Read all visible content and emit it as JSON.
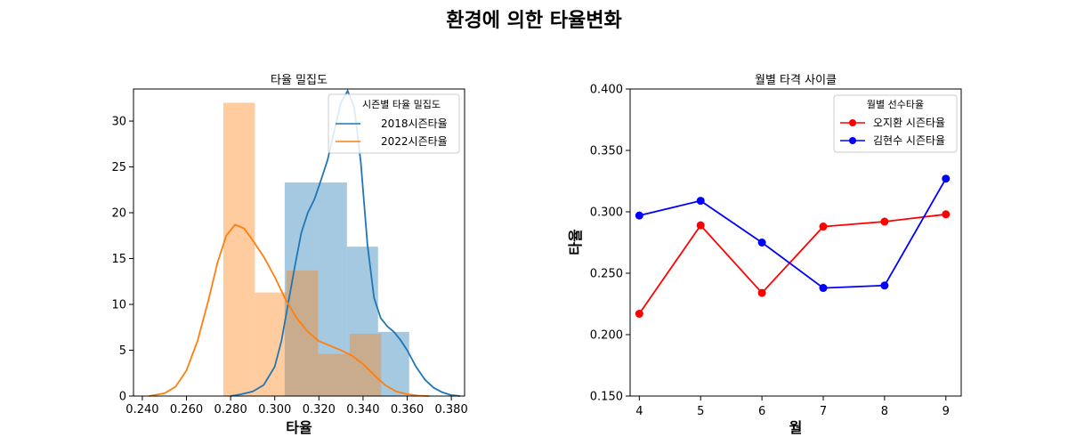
{
  "figure": {
    "suptitle": "환경에 의한 타율변화"
  },
  "chart_data": [
    {
      "type": "histogram",
      "title": "타율 밀집도",
      "xlabel": "타율",
      "ylabel": "",
      "xlim": [
        0.236,
        0.386
      ],
      "ylim": [
        0,
        33.5
      ],
      "xticks": [
        "0.240",
        "0.260",
        "0.280",
        "0.300",
        "0.320",
        "0.340",
        "0.360",
        "0.380"
      ],
      "yticks": [
        "0",
        "5",
        "10",
        "15",
        "20",
        "25",
        "30"
      ],
      "legend": {
        "title": "시즌별 타율 밀집도",
        "position": "top-right",
        "entries": [
          "2018시즌타율",
          "2022시즌타율"
        ]
      },
      "series": [
        {
          "name": "2018시즌타율",
          "color": "#1f77b4",
          "hist_alpha": 0.4,
          "bins": [
            {
              "x0": 0.3045,
              "x1": 0.3186,
              "density": 23.3
            },
            {
              "x0": 0.3186,
              "x1": 0.3327,
              "density": 23.3
            },
            {
              "x0": 0.3327,
              "x1": 0.3468,
              "density": 16.3
            },
            {
              "x0": 0.3468,
              "x1": 0.3609,
              "density": 7.0
            }
          ],
          "kde": {
            "x": [
              0.28,
              0.285,
              0.29,
              0.295,
              0.3,
              0.303,
              0.306,
              0.309,
              0.312,
              0.315,
              0.318,
              0.321,
              0.324,
              0.327,
              0.33,
              0.333,
              0.336,
              0.339,
              0.342,
              0.345,
              0.348,
              0.351,
              0.354,
              0.357,
              0.36,
              0.364,
              0.368,
              0.372,
              0.376,
              0.38,
              0.384
            ],
            "y": [
              0.0,
              0.2,
              0.5,
              1.2,
              3.2,
              6.0,
              10.0,
              14.0,
              17.8,
              20.0,
              21.5,
              23.6,
              25.8,
              29.0,
              32.0,
              33.3,
              31.5,
              25.5,
              16.5,
              10.7,
              8.5,
              7.6,
              7.0,
              6.1,
              5.0,
              3.2,
              1.8,
              0.9,
              0.4,
              0.1,
              0.0
            ]
          }
        },
        {
          "name": "2022시즌타율",
          "color": "#ff7f0e",
          "hist_alpha": 0.4,
          "bins": [
            {
              "x0": 0.2767,
              "x1": 0.291,
              "density": 32.0
            },
            {
              "x0": 0.291,
              "x1": 0.3053,
              "density": 11.3
            },
            {
              "x0": 0.3053,
              "x1": 0.3196,
              "density": 13.7
            },
            {
              "x0": 0.3196,
              "x1": 0.3339,
              "density": 4.6
            },
            {
              "x0": 0.3339,
              "x1": 0.3482,
              "density": 6.8
            }
          ],
          "kde": {
            "x": [
              0.243,
              0.25,
              0.255,
              0.26,
              0.265,
              0.27,
              0.274,
              0.278,
              0.282,
              0.286,
              0.29,
              0.295,
              0.3,
              0.305,
              0.31,
              0.315,
              0.32,
              0.325,
              0.33,
              0.335,
              0.34,
              0.345,
              0.35,
              0.355,
              0.36,
              0.365,
              0.37
            ],
            "y": [
              0.0,
              0.3,
              1.0,
              2.8,
              6.0,
              10.5,
              14.5,
              17.5,
              18.7,
              18.3,
              17.0,
              15.2,
              13.0,
              10.5,
              8.5,
              7.0,
              6.0,
              5.5,
              5.0,
              4.4,
              3.5,
              2.3,
              1.2,
              0.5,
              0.2,
              0.05,
              0.0
            ]
          }
        }
      ]
    },
    {
      "type": "line",
      "title": "월별 타격 사이클",
      "xlabel": "월",
      "ylabel": "타율",
      "x": [
        4,
        5,
        6,
        7,
        8,
        9
      ],
      "xlim": [
        3.85,
        9.25
      ],
      "ylim": [
        0.15,
        0.4
      ],
      "xticks": [
        "4",
        "5",
        "6",
        "7",
        "8",
        "9"
      ],
      "yticks": [
        "0.150",
        "0.200",
        "0.250",
        "0.300",
        "0.350",
        "0.400"
      ],
      "legend": {
        "title": "월별 선수타율",
        "position": "top-right",
        "entries": [
          "오지환 시즌타율",
          "김현수 시즌타율"
        ]
      },
      "series": [
        {
          "name": "오지환 시즌타율",
          "color": "#ff0000",
          "values": [
            0.217,
            0.289,
            0.234,
            0.288,
            0.292,
            0.298
          ]
        },
        {
          "name": "김현수 시즌타율",
          "color": "#0000ff",
          "values": [
            0.297,
            0.309,
            0.275,
            0.238,
            0.24,
            0.327
          ]
        }
      ]
    }
  ]
}
